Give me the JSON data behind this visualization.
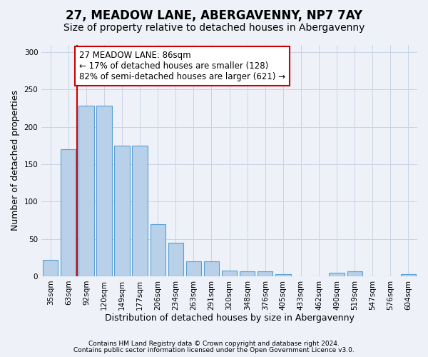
{
  "title1": "27, MEADOW LANE, ABERGAVENNY, NP7 7AY",
  "title2": "Size of property relative to detached houses in Abergavenny",
  "xlabel": "Distribution of detached houses by size in Abergavenny",
  "ylabel": "Number of detached properties",
  "footnote1": "Contains HM Land Registry data © Crown copyright and database right 2024.",
  "footnote2": "Contains public sector information licensed under the Open Government Licence v3.0.",
  "categories": [
    "35sqm",
    "63sqm",
    "92sqm",
    "120sqm",
    "149sqm",
    "177sqm",
    "206sqm",
    "234sqm",
    "263sqm",
    "291sqm",
    "320sqm",
    "348sqm",
    "376sqm",
    "405sqm",
    "433sqm",
    "462sqm",
    "490sqm",
    "519sqm",
    "547sqm",
    "576sqm",
    "604sqm"
  ],
  "values": [
    22,
    170,
    228,
    228,
    175,
    175,
    70,
    45,
    20,
    20,
    8,
    7,
    7,
    3,
    0,
    0,
    5,
    7,
    0,
    0,
    3
  ],
  "bar_color": "#b8d0e8",
  "bar_edge_color": "#5a9fd4",
  "grid_color": "#c8d4e4",
  "background_color": "#eef2f8",
  "annotation_border_color": "#cc0000",
  "vline_color": "#cc0000",
  "vline_x": 1.5,
  "annotation_text_line1": "27 MEADOW LANE: 86sqm",
  "annotation_text_line2": "← 17% of detached houses are smaller (128)",
  "annotation_text_line3": "82% of semi-detached houses are larger (621) →",
  "ylim": [
    0,
    310
  ],
  "yticks": [
    0,
    50,
    100,
    150,
    200,
    250,
    300
  ],
  "title1_fontsize": 12,
  "title2_fontsize": 10,
  "xlabel_fontsize": 9,
  "ylabel_fontsize": 9,
  "tick_fontsize": 7.5,
  "annotation_fontsize": 8.5,
  "footnote_fontsize": 6.5
}
